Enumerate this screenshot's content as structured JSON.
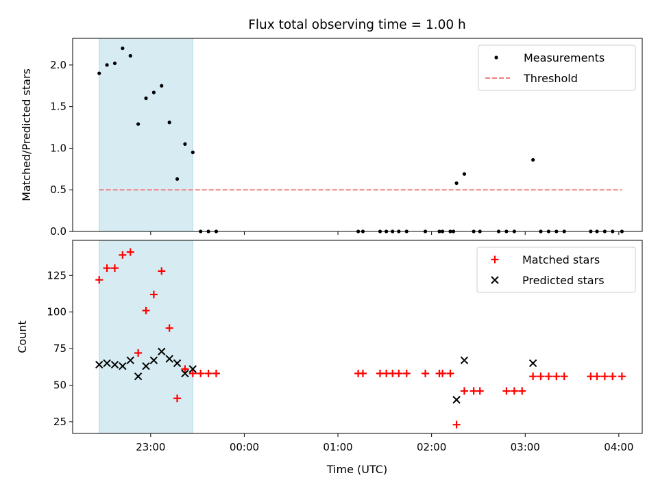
{
  "chart_data": [
    {
      "type": "scatter",
      "title": "Flux total observing time = 1.00 h",
      "xlabel": "",
      "ylabel": "Matched/Predicted stars",
      "xlim": [
        "22:10",
        "04:15"
      ],
      "ylim": [
        0,
        2.32
      ],
      "yticks": [
        0.0,
        0.5,
        1.0,
        1.5,
        2.0
      ],
      "ytick_labels": [
        "0.0",
        "0.5",
        "1.0",
        "1.5",
        "2.0"
      ],
      "xticks": [
        "23:00",
        "00:00",
        "01:00",
        "02:00",
        "03:00",
        "04:00"
      ],
      "shaded_interval": [
        "22:27",
        "23:27"
      ],
      "shaded_color": "#add8e6",
      "legend": {
        "placement": "upper-right",
        "entries": [
          "Measurements",
          "Threshold"
        ]
      },
      "threshold": {
        "name": "Threshold",
        "value": 0.5,
        "x_range": [
          "22:27",
          "04:02"
        ],
        "color": "#f08080",
        "style": "dashed"
      },
      "series": [
        {
          "name": "Measurements",
          "marker": "dot",
          "color": "#000000",
          "points": [
            [
              "22:27",
              1.9
            ],
            [
              "22:32",
              2.0
            ],
            [
              "22:37",
              2.02
            ],
            [
              "22:42",
              2.2
            ],
            [
              "22:47",
              2.11
            ],
            [
              "22:52",
              1.29
            ],
            [
              "22:57",
              1.6
            ],
            [
              "23:02",
              1.67
            ],
            [
              "23:07",
              1.75
            ],
            [
              "23:12",
              1.31
            ],
            [
              "23:17",
              0.63
            ],
            [
              "23:22",
              1.05
            ],
            [
              "23:27",
              0.95
            ],
            [
              "23:32",
              0.0
            ],
            [
              "23:37",
              0.0
            ],
            [
              "23:42",
              0.0
            ],
            [
              "01:13",
              0.0
            ],
            [
              "01:16",
              0.0
            ],
            [
              "01:27",
              0.0
            ],
            [
              "01:31",
              0.0
            ],
            [
              "01:35",
              0.0
            ],
            [
              "01:39",
              0.0
            ],
            [
              "01:44",
              0.0
            ],
            [
              "01:56",
              0.0
            ],
            [
              "02:05",
              0.0
            ],
            [
              "02:07",
              0.0
            ],
            [
              "02:12",
              0.0
            ],
            [
              "02:14",
              0.0
            ],
            [
              "02:16",
              0.58
            ],
            [
              "02:21",
              0.69
            ],
            [
              "02:27",
              0.0
            ],
            [
              "02:31",
              0.0
            ],
            [
              "02:43",
              0.0
            ],
            [
              "02:48",
              0.0
            ],
            [
              "02:53",
              0.0
            ],
            [
              "03:05",
              0.86
            ],
            [
              "03:10",
              0.0
            ],
            [
              "03:15",
              0.0
            ],
            [
              "03:20",
              0.0
            ],
            [
              "03:25",
              0.0
            ],
            [
              "03:42",
              0.0
            ],
            [
              "03:46",
              0.0
            ],
            [
              "03:51",
              0.0
            ],
            [
              "03:56",
              0.0
            ],
            [
              "04:02",
              0.0
            ]
          ]
        }
      ]
    },
    {
      "type": "scatter",
      "title": "",
      "xlabel": "Time (UTC)",
      "ylabel": "Count",
      "xlim": [
        "22:10",
        "04:15"
      ],
      "ylim": [
        17,
        149
      ],
      "yticks": [
        25,
        50,
        75,
        100,
        125
      ],
      "ytick_labels": [
        "25",
        "50",
        "75",
        "100",
        "125"
      ],
      "xticks": [
        "23:00",
        "00:00",
        "01:00",
        "02:00",
        "03:00",
        "04:00"
      ],
      "xtick_labels": [
        "23:00",
        "00:00",
        "01:00",
        "02:00",
        "03:00",
        "04:00"
      ],
      "shaded_interval": [
        "22:27",
        "23:27"
      ],
      "shaded_color": "#add8e6",
      "legend": {
        "placement": "upper-right",
        "entries": [
          "Matched stars",
          "Predicted stars"
        ]
      },
      "series": [
        {
          "name": "Matched stars",
          "marker": "plus",
          "color": "#ff0000",
          "points": [
            [
              "22:27",
              122
            ],
            [
              "22:32",
              130
            ],
            [
              "22:37",
              130
            ],
            [
              "22:42",
              139
            ],
            [
              "22:47",
              141
            ],
            [
              "22:52",
              72
            ],
            [
              "22:57",
              101
            ],
            [
              "23:02",
              112
            ],
            [
              "23:07",
              128
            ],
            [
              "23:12",
              89
            ],
            [
              "23:17",
              41
            ],
            [
              "23:22",
              61
            ],
            [
              "23:27",
              58
            ],
            [
              "23:32",
              58
            ],
            [
              "23:37",
              58
            ],
            [
              "23:42",
              58
            ],
            [
              "01:13",
              58
            ],
            [
              "01:16",
              58
            ],
            [
              "01:27",
              58
            ],
            [
              "01:31",
              58
            ],
            [
              "01:35",
              58
            ],
            [
              "01:39",
              58
            ],
            [
              "01:44",
              58
            ],
            [
              "01:56",
              58
            ],
            [
              "02:05",
              58
            ],
            [
              "02:07",
              58
            ],
            [
              "02:12",
              58
            ],
            [
              "02:16",
              23
            ],
            [
              "02:21",
              46
            ],
            [
              "02:27",
              46
            ],
            [
              "02:31",
              46
            ],
            [
              "02:48",
              46
            ],
            [
              "02:53",
              46
            ],
            [
              "02:58",
              46
            ],
            [
              "03:05",
              56
            ],
            [
              "03:10",
              56
            ],
            [
              "03:15",
              56
            ],
            [
              "03:20",
              56
            ],
            [
              "03:25",
              56
            ],
            [
              "03:42",
              56
            ],
            [
              "03:46",
              56
            ],
            [
              "03:51",
              56
            ],
            [
              "03:56",
              56
            ],
            [
              "04:02",
              56
            ]
          ]
        },
        {
          "name": "Predicted stars",
          "marker": "x",
          "color": "#000000",
          "points": [
            [
              "22:27",
              64
            ],
            [
              "22:32",
              65
            ],
            [
              "22:37",
              64
            ],
            [
              "22:42",
              63
            ],
            [
              "22:47",
              67
            ],
            [
              "22:52",
              56
            ],
            [
              "22:57",
              63
            ],
            [
              "23:02",
              67
            ],
            [
              "23:07",
              73
            ],
            [
              "23:12",
              68
            ],
            [
              "23:17",
              65
            ],
            [
              "23:22",
              58
            ],
            [
              "23:27",
              61
            ],
            [
              "02:16",
              40
            ],
            [
              "02:21",
              67
            ],
            [
              "03:05",
              65
            ]
          ]
        }
      ]
    }
  ]
}
